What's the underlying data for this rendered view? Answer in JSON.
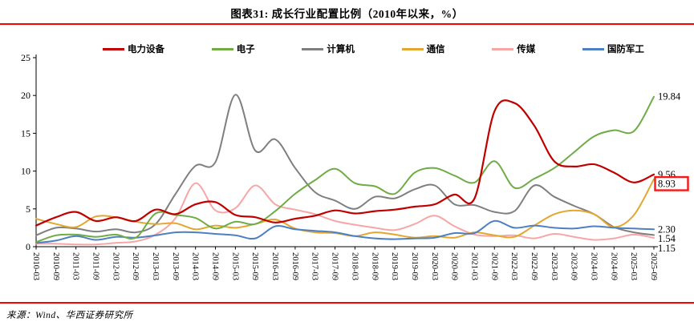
{
  "header": {
    "title": "图表31: 成长行业配置比例（2010年以来，%）"
  },
  "footer": {
    "source": "来源：Wind、华西证券研究所"
  },
  "chart_data": {
    "type": "line",
    "title": "图表31: 成长行业配置比例（2010年以来，%）",
    "xlabel": "",
    "ylabel": "",
    "ylim": [
      0,
      25
    ],
    "yticks": [
      0,
      5,
      10,
      15,
      20,
      25
    ],
    "grid": false,
    "legend_position": "top",
    "categories": [
      "2010-03",
      "2010-09",
      "2011-03",
      "2011-09",
      "2012-03",
      "2012-09",
      "2013-03",
      "2013-09",
      "2014-03",
      "2014-09",
      "2015-03",
      "2015-09",
      "2016-03",
      "2016-09",
      "2017-03",
      "2017-09",
      "2018-03",
      "2018-09",
      "2019-03",
      "2019-09",
      "2020-03",
      "2020-09",
      "2021-03",
      "2021-09",
      "2022-03",
      "2022-09",
      "2023-03",
      "2023-09",
      "2024-03",
      "2024-09",
      "2025-03",
      "2025-09"
    ],
    "series": [
      {
        "id": "power-equipment",
        "name": "电力设备",
        "color": "#c00000",
        "width": 2.2,
        "end_label": "9.56",
        "boxed": false,
        "values": [
          2.8,
          3.9,
          4.6,
          3.4,
          3.9,
          3.4,
          4.9,
          4.3,
          5.6,
          5.9,
          4.2,
          3.9,
          3.2,
          3.7,
          4.1,
          4.8,
          4.4,
          4.7,
          4.9,
          5.3,
          5.6,
          6.9,
          6.4,
          17.9,
          19.0,
          16.0,
          11.3,
          10.6,
          10.9,
          9.8,
          8.5,
          9.56
        ]
      },
      {
        "id": "electronics",
        "name": "电子",
        "color": "#6fac46",
        "width": 2.0,
        "end_label": "19.84",
        "boxed": false,
        "values": [
          0.6,
          1.5,
          1.6,
          1.3,
          1.6,
          1.2,
          4.4,
          4.2,
          3.8,
          2.4,
          3.3,
          3.0,
          4.7,
          7.0,
          8.8,
          10.3,
          8.4,
          8.0,
          7.0,
          9.8,
          10.4,
          9.4,
          8.5,
          11.3,
          7.8,
          9.0,
          10.4,
          12.5,
          14.6,
          15.4,
          15.3,
          19.84
        ]
      },
      {
        "id": "computer",
        "name": "计算机",
        "color": "#7f7f7f",
        "width": 2.0,
        "end_label": "1.54",
        "boxed": false,
        "values": [
          1.5,
          2.5,
          2.4,
          2.0,
          2.3,
          1.9,
          3.0,
          7.0,
          10.7,
          11.2,
          20.1,
          12.7,
          14.2,
          10.4,
          7.2,
          6.1,
          5.0,
          6.6,
          6.4,
          7.6,
          8.1,
          5.6,
          5.5,
          4.6,
          4.7,
          8.1,
          6.6,
          5.4,
          4.3,
          2.6,
          1.9,
          1.54
        ]
      },
      {
        "id": "telecom",
        "name": "通信",
        "color": "#e3a72f",
        "width": 2.0,
        "end_label": "8.93",
        "boxed": true,
        "values": [
          3.7,
          3.0,
          2.6,
          4.0,
          3.9,
          3.3,
          3.0,
          3.1,
          2.3,
          2.8,
          2.5,
          3.0,
          3.6,
          2.4,
          1.9,
          1.8,
          1.4,
          1.9,
          1.6,
          1.2,
          1.4,
          1.2,
          1.9,
          1.5,
          1.3,
          2.8,
          4.3,
          4.8,
          4.3,
          2.6,
          4.2,
          8.93
        ]
      },
      {
        "id": "media",
        "name": "传媒",
        "color": "#f7a6a6",
        "width": 2.0,
        "end_label": "1.15",
        "boxed": false,
        "values": [
          0.4,
          0.4,
          0.3,
          0.3,
          0.5,
          0.7,
          1.6,
          3.8,
          8.4,
          4.8,
          5.1,
          8.1,
          5.6,
          4.9,
          4.3,
          3.4,
          2.9,
          2.5,
          2.2,
          3.0,
          4.1,
          2.7,
          1.6,
          1.4,
          1.5,
          1.1,
          1.7,
          1.3,
          0.9,
          1.1,
          1.6,
          1.15
        ]
      },
      {
        "id": "defense",
        "name": "国防军工",
        "color": "#4e7fc1",
        "width": 2.0,
        "end_label": "2.30",
        "boxed": false,
        "values": [
          0.5,
          0.8,
          1.4,
          0.9,
          1.3,
          1.2,
          1.5,
          1.9,
          1.9,
          1.7,
          1.5,
          1.1,
          2.7,
          2.3,
          2.1,
          1.9,
          1.4,
          1.1,
          1.0,
          1.1,
          1.2,
          1.8,
          1.8,
          3.4,
          2.5,
          2.8,
          2.5,
          2.4,
          2.7,
          2.5,
          2.4,
          2.3
        ]
      }
    ],
    "highlight_box_color": "#f81616"
  }
}
